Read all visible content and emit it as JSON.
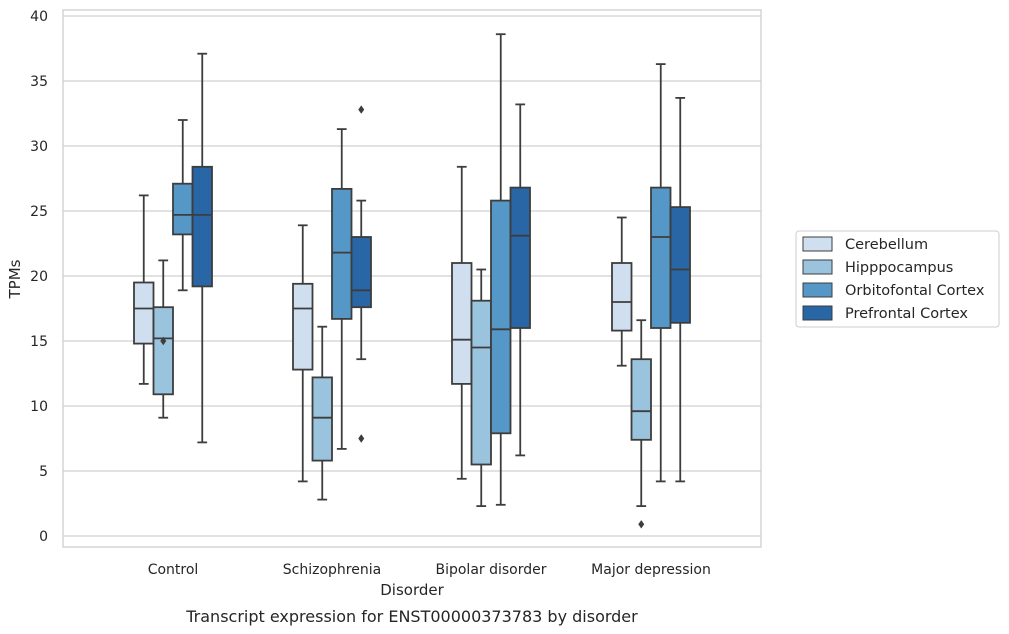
{
  "chart_data": {
    "type": "boxplot",
    "caption": "Transcript expression for ENST00000373783 by disorder",
    "xlabel": "Disorder",
    "ylabel": "TPMs",
    "ylim": [
      -1,
      40.5
    ],
    "yticks": [
      0,
      5,
      10,
      15,
      20,
      25,
      30,
      35,
      40
    ],
    "grid": "horizontal",
    "legend_position": "right",
    "categories": [
      "Control",
      "Schizophrenia",
      "Bipolar disorder",
      "Major depression"
    ],
    "series": [
      {
        "name": "Cerebellum",
        "color": "#cfdff0",
        "boxes": [
          {
            "whislo": 11.7,
            "q1": 14.8,
            "med": 17.5,
            "q3": 19.5,
            "whishi": 26.2,
            "fliers": []
          },
          {
            "whislo": 4.2,
            "q1": 12.8,
            "med": 17.5,
            "q3": 19.4,
            "whishi": 23.9,
            "fliers": []
          },
          {
            "whislo": 4.4,
            "q1": 11.7,
            "med": 15.1,
            "q3": 21.0,
            "whishi": 28.4,
            "fliers": []
          },
          {
            "whislo": 13.1,
            "q1": 15.8,
            "med": 18.0,
            "q3": 21.0,
            "whishi": 24.5,
            "fliers": []
          }
        ]
      },
      {
        "name": "Hipppocampus",
        "color": "#9ac3dd",
        "boxes": [
          {
            "whislo": 9.1,
            "q1": 10.9,
            "med": 15.2,
            "q3": 17.6,
            "whishi": 21.2,
            "fliers": [
              15.0
            ]
          },
          {
            "whislo": 2.8,
            "q1": 5.8,
            "med": 9.1,
            "q3": 12.2,
            "whishi": 16.1,
            "fliers": []
          },
          {
            "whislo": 2.3,
            "q1": 5.5,
            "med": 14.5,
            "q3": 18.1,
            "whishi": 20.5,
            "fliers": []
          },
          {
            "whislo": 2.3,
            "q1": 7.4,
            "med": 9.6,
            "q3": 13.6,
            "whishi": 16.6,
            "fliers": [
              0.9
            ]
          }
        ]
      },
      {
        "name": "Orbitofontal Cortex",
        "color": "#5597c6",
        "boxes": [
          {
            "whislo": 18.9,
            "q1": 23.2,
            "med": 24.7,
            "q3": 27.1,
            "whishi": 32.0,
            "fliers": []
          },
          {
            "whislo": 6.7,
            "q1": 16.7,
            "med": 21.8,
            "q3": 26.7,
            "whishi": 31.3,
            "fliers": []
          },
          {
            "whislo": 2.4,
            "q1": 7.9,
            "med": 15.9,
            "q3": 25.8,
            "whishi": 38.6,
            "fliers": []
          },
          {
            "whislo": 4.2,
            "q1": 16.0,
            "med": 23.0,
            "q3": 26.8,
            "whishi": 36.3,
            "fliers": []
          }
        ]
      },
      {
        "name": "Prefrontal Cortex",
        "color": "#2866a6",
        "boxes": [
          {
            "whislo": 7.2,
            "q1": 19.2,
            "med": 24.7,
            "q3": 28.4,
            "whishi": 37.1,
            "fliers": []
          },
          {
            "whislo": 13.6,
            "q1": 17.6,
            "med": 18.9,
            "q3": 23.0,
            "whishi": 25.8,
            "fliers": [
              32.8,
              7.5
            ]
          },
          {
            "whislo": 6.2,
            "q1": 16.0,
            "med": 23.1,
            "q3": 26.8,
            "whishi": 33.2,
            "fliers": []
          },
          {
            "whislo": 4.2,
            "q1": 16.4,
            "med": 20.5,
            "q3": 25.3,
            "whishi": 33.7,
            "fliers": []
          }
        ]
      }
    ]
  }
}
